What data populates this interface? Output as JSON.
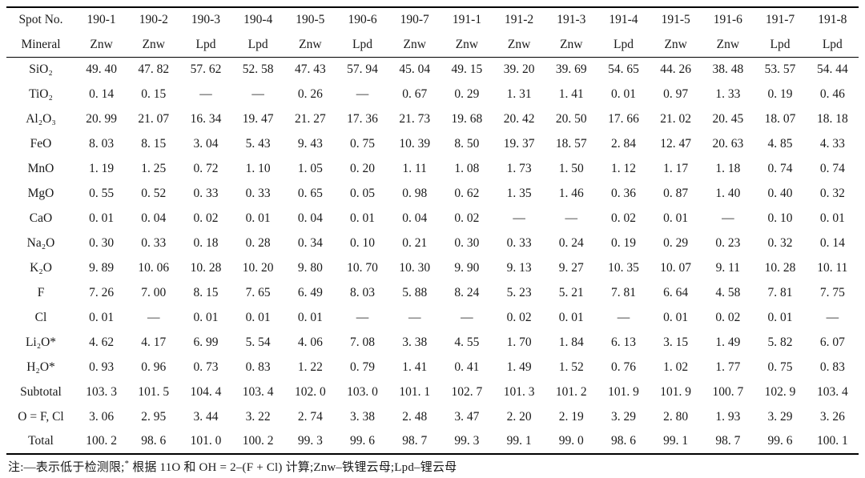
{
  "table": {
    "spot_row_label": "Spot No.",
    "mineral_row_label": "Mineral",
    "spots": [
      "190-1",
      "190-2",
      "190-3",
      "190-4",
      "190-5",
      "190-6",
      "190-7",
      "191-1",
      "191-2",
      "191-3",
      "191-4",
      "191-5",
      "191-6",
      "191-7",
      "191-8"
    ],
    "minerals": [
      "Znw",
      "Znw",
      "Lpd",
      "Lpd",
      "Znw",
      "Lpd",
      "Znw",
      "Znw",
      "Znw",
      "Znw",
      "Lpd",
      "Znw",
      "Znw",
      "Lpd",
      "Lpd"
    ],
    "rows": [
      {
        "label": "SiO₂",
        "values": [
          "49. 40",
          "47. 82",
          "57. 62",
          "52. 58",
          "47. 43",
          "57. 94",
          "45. 04",
          "49. 15",
          "39. 20",
          "39. 69",
          "54. 65",
          "44. 26",
          "38. 48",
          "53. 57",
          "54. 44"
        ]
      },
      {
        "label": "TiO₂",
        "values": [
          "0. 14",
          "0. 15",
          "—",
          "—",
          "0. 26",
          "—",
          "0. 67",
          "0. 29",
          "1. 31",
          "1. 41",
          "0. 01",
          "0. 97",
          "1. 33",
          "0. 19",
          "0. 46"
        ]
      },
      {
        "label": "Al₂O₃",
        "values": [
          "20. 99",
          "21. 07",
          "16. 34",
          "19. 47",
          "21. 27",
          "17. 36",
          "21. 73",
          "19. 68",
          "20. 42",
          "20. 50",
          "17. 66",
          "21. 02",
          "20. 45",
          "18. 07",
          "18. 18"
        ]
      },
      {
        "label": "FeO",
        "values": [
          "8. 03",
          "8. 15",
          "3. 04",
          "5. 43",
          "9. 43",
          "0. 75",
          "10. 39",
          "8. 50",
          "19. 37",
          "18. 57",
          "2. 84",
          "12. 47",
          "20. 63",
          "4. 85",
          "4. 33"
        ]
      },
      {
        "label": "MnO",
        "values": [
          "1. 19",
          "1. 25",
          "0. 72",
          "1. 10",
          "1. 05",
          "0. 20",
          "1. 11",
          "1. 08",
          "1. 73",
          "1. 50",
          "1. 12",
          "1. 17",
          "1. 18",
          "0. 74",
          "0. 74"
        ]
      },
      {
        "label": "MgO",
        "values": [
          "0. 55",
          "0. 52",
          "0. 33",
          "0. 33",
          "0. 65",
          "0. 05",
          "0. 98",
          "0. 62",
          "1. 35",
          "1. 46",
          "0. 36",
          "0. 87",
          "1. 40",
          "0. 40",
          "0. 32"
        ]
      },
      {
        "label": "CaO",
        "values": [
          "0. 01",
          "0. 04",
          "0. 02",
          "0. 01",
          "0. 04",
          "0. 01",
          "0. 04",
          "0. 02",
          "—",
          "—",
          "0. 02",
          "0. 01",
          "—",
          "0. 10",
          "0. 01"
        ]
      },
      {
        "label": "Na₂O",
        "values": [
          "0. 30",
          "0. 33",
          "0. 18",
          "0. 28",
          "0. 34",
          "0. 10",
          "0. 21",
          "0. 30",
          "0. 33",
          "0. 24",
          "0. 19",
          "0. 29",
          "0. 23",
          "0. 32",
          "0. 14"
        ]
      },
      {
        "label": "K₂O",
        "values": [
          "9. 89",
          "10. 06",
          "10. 28",
          "10. 20",
          "9. 80",
          "10. 70",
          "10. 30",
          "9. 90",
          "9. 13",
          "9. 27",
          "10. 35",
          "10. 07",
          "9. 11",
          "10. 28",
          "10. 11"
        ]
      },
      {
        "label": "F",
        "values": [
          "7. 26",
          "7. 00",
          "8. 15",
          "7. 65",
          "6. 49",
          "8. 03",
          "5. 88",
          "8. 24",
          "5. 23",
          "5. 21",
          "7. 81",
          "6. 64",
          "4. 58",
          "7. 81",
          "7. 75"
        ]
      },
      {
        "label": "Cl",
        "values": [
          "0. 01",
          "—",
          "0. 01",
          "0. 01",
          "0. 01",
          "—",
          "—",
          "—",
          "0. 02",
          "0. 01",
          "—",
          "0. 01",
          "0. 02",
          "0. 01",
          "—"
        ]
      },
      {
        "label": "Li₂O*",
        "values": [
          "4. 62",
          "4. 17",
          "6. 99",
          "5. 54",
          "4. 06",
          "7. 08",
          "3. 38",
          "4. 55",
          "1. 70",
          "1. 84",
          "6. 13",
          "3. 15",
          "1. 49",
          "5. 82",
          "6. 07"
        ]
      },
      {
        "label": "H₂O*",
        "values": [
          "0. 93",
          "0. 96",
          "0. 73",
          "0. 83",
          "1. 22",
          "0. 79",
          "1. 41",
          "0. 41",
          "1. 49",
          "1. 52",
          "0. 76",
          "1. 02",
          "1. 77",
          "0. 75",
          "0. 83"
        ]
      },
      {
        "label": "Subtotal",
        "values": [
          "103. 3",
          "101. 5",
          "104. 4",
          "103. 4",
          "102. 0",
          "103. 0",
          "101. 1",
          "102. 7",
          "101. 3",
          "101. 2",
          "101. 9",
          "101. 9",
          "100. 7",
          "102. 9",
          "103. 4"
        ]
      },
      {
        "label": "O = F, Cl",
        "values": [
          "3. 06",
          "2. 95",
          "3. 44",
          "3. 22",
          "2. 74",
          "3. 38",
          "2. 48",
          "3. 47",
          "2. 20",
          "2. 19",
          "3. 29",
          "2. 80",
          "1. 93",
          "3. 29",
          "3. 26"
        ]
      },
      {
        "label": "Total",
        "values": [
          "100. 2",
          "98. 6",
          "101. 0",
          "100. 2",
          "99. 3",
          "99. 6",
          "98. 7",
          "99. 3",
          "99. 1",
          "99. 0",
          "98. 6",
          "99. 1",
          "98. 7",
          "99. 6",
          "100. 1"
        ]
      }
    ]
  },
  "footnote": {
    "prefix": "注:—表示低于检测限;",
    "star": "*",
    "suffix": " 根据 11O 和 OH = 2–(F + Cl) 计算;Znw–铁锂云母;Lpd–锂云母"
  }
}
